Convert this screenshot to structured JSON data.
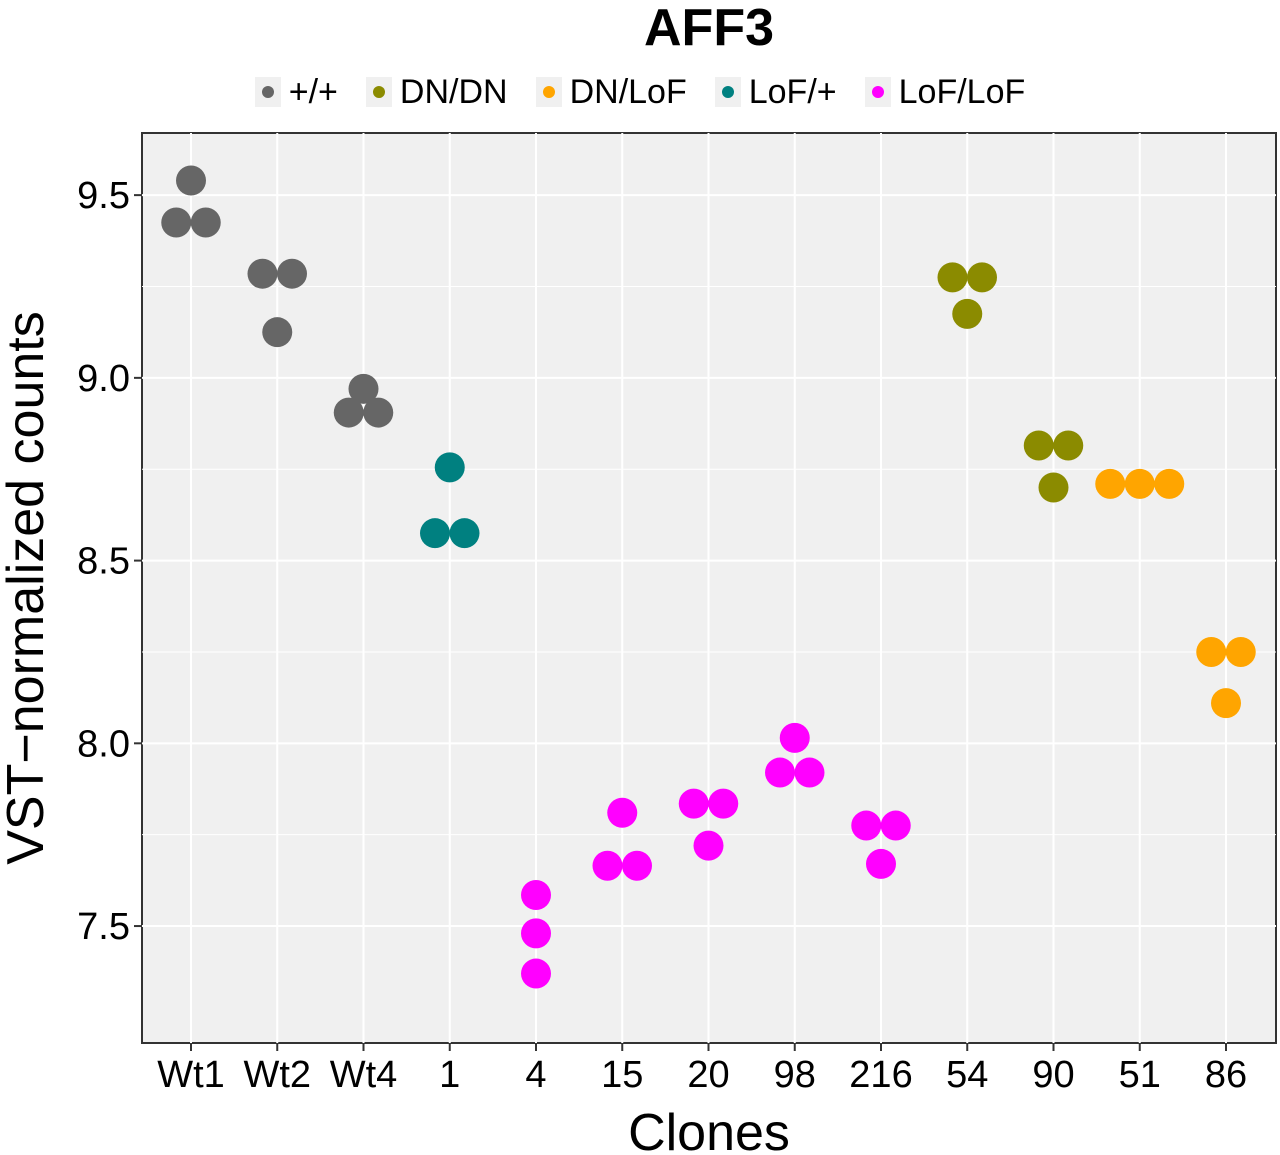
{
  "chart_data": {
    "type": "scatter",
    "title": "AFF3",
    "xlabel": "Clones",
    "ylabel": "VST−normalized counts",
    "ylim": [
      7.18,
      9.67
    ],
    "yticks": [
      7.5,
      8.0,
      8.5,
      9.0,
      9.5
    ],
    "ytick_labels": [
      "7.5",
      "8.0",
      "8.5",
      "9.0",
      "9.5"
    ],
    "categories": [
      "Wt1",
      "Wt2",
      "Wt4",
      "1",
      "4",
      "15",
      "20",
      "98",
      "216",
      "54",
      "90",
      "51",
      "86"
    ],
    "grid": true,
    "legend_position": "top",
    "series": [
      {
        "name": "+/+",
        "color": "#666666",
        "points": [
          {
            "x": "Wt1",
            "y": [
              9.54,
              9.425,
              9.425
            ]
          },
          {
            "x": "Wt2",
            "y": [
              9.285,
              9.285,
              9.125
            ]
          },
          {
            "x": "Wt4",
            "y": [
              8.97,
              8.905,
              8.905
            ]
          }
        ]
      },
      {
        "name": "DN/DN",
        "color": "#8b8b00",
        "points": [
          {
            "x": "54",
            "y": [
              9.275,
              9.275,
              9.175
            ]
          },
          {
            "x": "90",
            "y": [
              8.815,
              8.815,
              8.7
            ]
          }
        ]
      },
      {
        "name": "DN/LoF",
        "color": "#ffa500",
        "points": [
          {
            "x": "51",
            "y": [
              8.71,
              8.71,
              8.71
            ]
          },
          {
            "x": "86",
            "y": [
              8.25,
              8.25,
              8.11
            ]
          }
        ]
      },
      {
        "name": "LoF/+",
        "color": "#008080",
        "points": [
          {
            "x": "1",
            "y": [
              8.755,
              8.575,
              8.575
            ]
          }
        ]
      },
      {
        "name": "LoF/LoF",
        "color": "#ff00ff",
        "points": [
          {
            "x": "4",
            "y": [
              7.585,
              7.48,
              7.37
            ]
          },
          {
            "x": "15",
            "y": [
              7.81,
              7.665,
              7.665
            ]
          },
          {
            "x": "20",
            "y": [
              7.835,
              7.835,
              7.72
            ]
          },
          {
            "x": "98",
            "y": [
              8.015,
              7.92,
              7.92
            ]
          },
          {
            "x": "216",
            "y": [
              7.775,
              7.775,
              7.67
            ]
          }
        ]
      }
    ]
  }
}
